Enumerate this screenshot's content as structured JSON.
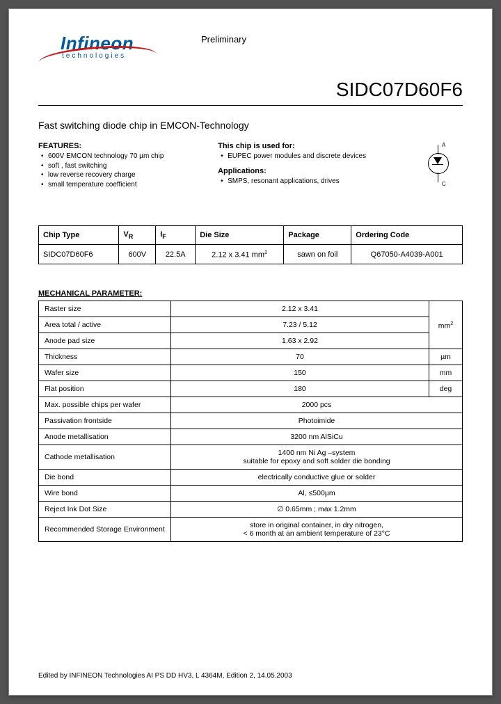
{
  "logo": {
    "name": "Infineon",
    "sub": "technologies"
  },
  "header": {
    "preliminary": "Preliminary",
    "part_number": "SIDC07D60F6"
  },
  "subtitle": "Fast switching diode chip in EMCON-Technology",
  "features": {
    "title": "FEATURES:",
    "items": [
      "600V EMCON technology 70 µm chip",
      "soft , fast switching",
      "low reverse recovery charge",
      "small temperature coefficient"
    ]
  },
  "usedfor": {
    "title": "This chip is used for:",
    "items": [
      "EUPEC power modules and discrete devices"
    ]
  },
  "applications": {
    "title": "Applications:",
    "items": [
      "SMPS, resonant applications, drives"
    ]
  },
  "diode_labels": {
    "anode": "A",
    "cathode": "C"
  },
  "chip_table": {
    "headers": [
      "Chip Type",
      "V",
      "I",
      "Die Size",
      "Package",
      "Ordering Code"
    ],
    "sub_r": "R",
    "sub_f": "F",
    "row": {
      "type": "SIDC07D60F6",
      "vr": "600V",
      "if": "22.5A",
      "die": "2.12 x 3.41 mm",
      "die_exp": "2",
      "pkg": "sawn on foil",
      "code": "Q67050-A4039-A001"
    }
  },
  "mech": {
    "title": "MECHANICAL PARAMETER:",
    "rows": [
      {
        "label": "Raster size",
        "value": "2.12 x 3.41",
        "unit": "mm²",
        "unit_rowspan": 3
      },
      {
        "label": "Area total / active",
        "value": "7.23 / 5.12"
      },
      {
        "label": "Anode pad size",
        "value": "1.63 x 2.92"
      },
      {
        "label": "Thickness",
        "value": "70",
        "unit": "µm"
      },
      {
        "label": "Wafer size",
        "value": "150",
        "unit": "mm"
      },
      {
        "label": "Flat position",
        "value": "180",
        "unit": "deg"
      },
      {
        "label": "Max. possible chips per wafer",
        "value": "2000 pcs",
        "span": true
      },
      {
        "label": "Passivation frontside",
        "value": "Photoimide",
        "span": true
      },
      {
        "label": "Anode metallisation",
        "value": "3200 nm AlSiCu",
        "span": true
      },
      {
        "label": "Cathode metallisation",
        "value": "1400 nm Ni Ag –system\nsuitable for epoxy and soft solder die bonding",
        "span": true
      },
      {
        "label": "Die bond",
        "value": "electrically conductive glue or solder",
        "span": true
      },
      {
        "label": "Wire bond",
        "value": "Al, ≤500µm",
        "span": true
      },
      {
        "label": "Reject Ink Dot Size",
        "value": "∅ 0.65mm ; max 1.2mm",
        "span": true
      },
      {
        "label": "Recommended Storage Environment",
        "value": "store in original container, in dry nitrogen,\n< 6 month at an ambient temperature of 23°C",
        "span": true
      }
    ]
  },
  "footer": "Edited by INFINEON Technologies AI PS DD HV3,  L 4364M, Edition 2, 14.05.2003"
}
